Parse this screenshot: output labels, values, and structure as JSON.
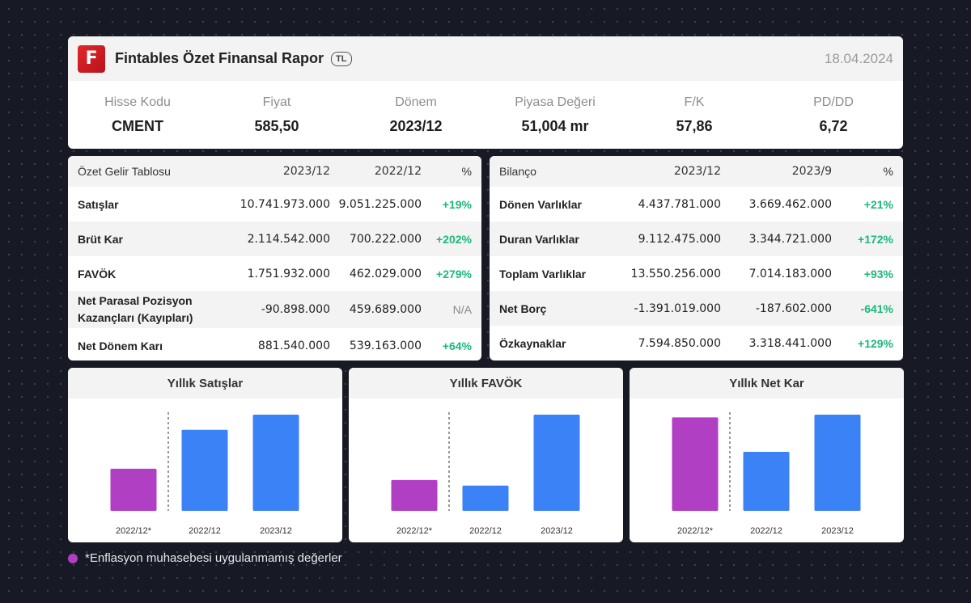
{
  "header": {
    "logo_letter": "F",
    "title": "Fintables Özet Finansal Rapor",
    "currency_badge": "TL",
    "date": "18.04.2024"
  },
  "metrics": [
    {
      "label": "Hisse Kodu",
      "value": "CMENT"
    },
    {
      "label": "Fiyat",
      "value": "585,50"
    },
    {
      "label": "Dönem",
      "value": "2023/12"
    },
    {
      "label": "Piyasa Değeri",
      "value": "51,004 mr"
    },
    {
      "label": "F/K",
      "value": "57,86"
    },
    {
      "label": "PD/DD",
      "value": "6,72"
    }
  ],
  "income": {
    "headers": [
      "Özet Gelir Tablosu",
      "2023/12",
      "2022/12",
      "%"
    ],
    "rows": [
      {
        "label": "Satışlar",
        "v1": "10.741.973.000",
        "v2": "9.051.225.000",
        "pct": "+19%"
      },
      {
        "label": "Brüt Kar",
        "v1": "2.114.542.000",
        "v2": "700.222.000",
        "pct": "+202%"
      },
      {
        "label": "FAVÖK",
        "v1": "1.751.932.000",
        "v2": "462.029.000",
        "pct": "+279%"
      },
      {
        "label": "Net Parasal Pozisyon Kazançları (Kayıpları)",
        "v1": "-90.898.000",
        "v2": "459.689.000",
        "pct": "N/A"
      },
      {
        "label": "Net Dönem Karı",
        "v1": "881.540.000",
        "v2": "539.163.000",
        "pct": "+64%"
      }
    ]
  },
  "balance": {
    "headers": [
      "Bilanço",
      "2023/12",
      "2023/9",
      "%"
    ],
    "rows": [
      {
        "label": "Dönen Varlıklar",
        "v1": "4.437.781.000",
        "v2": "3.669.462.000",
        "pct": "+21%"
      },
      {
        "label": "Duran Varlıklar",
        "v1": "9.112.475.000",
        "v2": "3.344.721.000",
        "pct": "+172%"
      },
      {
        "label": "Toplam Varlıklar",
        "v1": "13.550.256.000",
        "v2": "7.014.183.000",
        "pct": "+93%"
      },
      {
        "label": "Net Borç",
        "v1": "-1.391.019.000",
        "v2": "-187.602.000",
        "pct": "-641%"
      },
      {
        "label": "Özkaynaklar",
        "v1": "7.594.850.000",
        "v2": "3.318.441.000",
        "pct": "+129%"
      }
    ]
  },
  "colors": {
    "non_inflation_bar": "#b03fc4",
    "bar": "#3b82f6",
    "positive": "#1db87a"
  },
  "chart_data": [
    {
      "type": "bar",
      "title": "Yıllık Satışlar",
      "categories": [
        "2022/12*",
        "2022/12",
        "2023/12"
      ],
      "values": [
        4.7,
        9.05,
        10.74
      ]
    },
    {
      "type": "bar",
      "title": "Yıllık FAVÖK",
      "categories": [
        "2022/12*",
        "2022/12",
        "2023/12"
      ],
      "values": [
        0.56,
        0.46,
        1.75
      ]
    },
    {
      "type": "bar",
      "title": "Yıllık Net Kar",
      "categories": [
        "2022/12*",
        "2022/12",
        "2023/12"
      ],
      "values": [
        0.855,
        0.54,
        0.88
      ]
    }
  ],
  "footnote": "*Enflasyon muhasebesi uygulanmamış değerler"
}
